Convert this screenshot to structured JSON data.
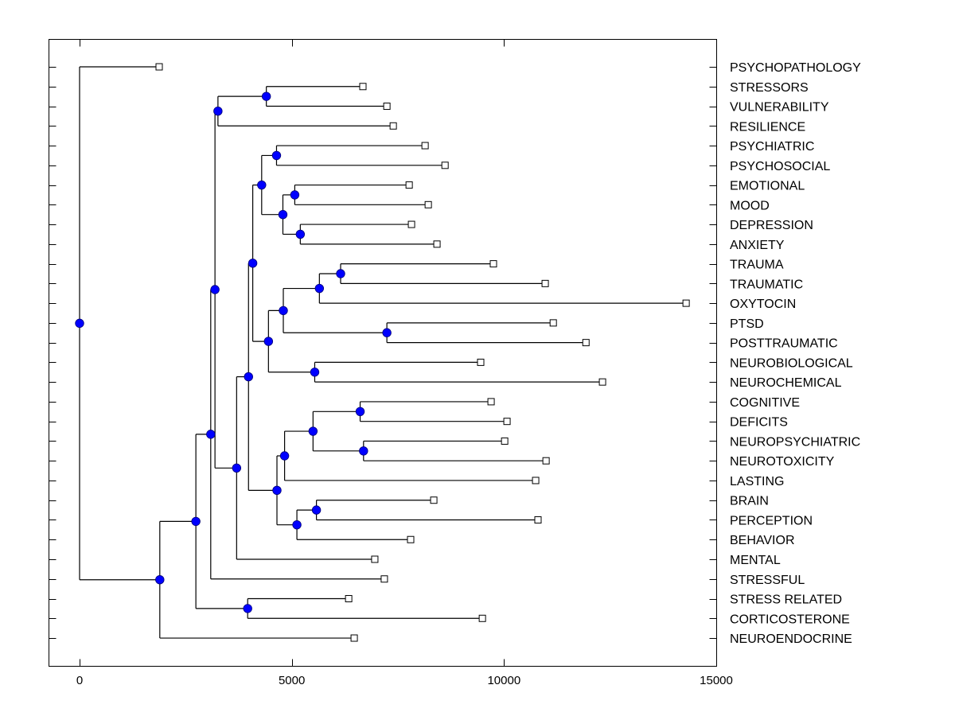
{
  "chart_data": {
    "type": "dendrogram",
    "title": "",
    "xlabel": "",
    "ylabel": "",
    "xlim": [
      -700,
      15000
    ],
    "xticks": [
      0,
      5000,
      10000,
      15000
    ],
    "xtick_labels": [
      "0",
      "5000",
      "10000",
      "15000"
    ],
    "grid": false,
    "legend": "none",
    "colors": {
      "node_fill": "#0000ff",
      "line": "#000000",
      "leaf_fill": "#ffffff"
    },
    "leaves": [
      {
        "label": "PSYCHOPATHOLOGY",
        "value": 1875
      },
      {
        "label": "STRESSORS",
        "value": 6675
      },
      {
        "label": "VULNERABILITY",
        "value": 7240
      },
      {
        "label": "RESILIENCE",
        "value": 7390
      },
      {
        "label": "PSYCHIATRIC",
        "value": 8140
      },
      {
        "label": "PSYCHOSOCIAL",
        "value": 8610
      },
      {
        "label": "EMOTIONAL",
        "value": 7765
      },
      {
        "label": "MOOD",
        "value": 8215
      },
      {
        "label": "DEPRESSION",
        "value": 7820
      },
      {
        "label": "ANXIETY",
        "value": 8420
      },
      {
        "label": "TRAUMA",
        "value": 9750
      },
      {
        "label": "TRAUMATIC",
        "value": 10970
      },
      {
        "label": "OXYTOCIN",
        "value": 14290
      },
      {
        "label": "PTSD",
        "value": 11160
      },
      {
        "label": "POSTTRAUMATIC",
        "value": 11930
      },
      {
        "label": "NEUROBIOLOGICAL",
        "value": 9450
      },
      {
        "label": "NEUROCHEMICAL",
        "value": 12320
      },
      {
        "label": "COGNITIVE",
        "value": 9695
      },
      {
        "label": "DEFICITS",
        "value": 10070
      },
      {
        "label": "NEUROPSYCHIATRIC",
        "value": 10015
      },
      {
        "label": "NEUROTOXICITY",
        "value": 10990
      },
      {
        "label": "LASTING",
        "value": 10745
      },
      {
        "label": "BRAIN",
        "value": 8345
      },
      {
        "label": "PERCEPTION",
        "value": 10800
      },
      {
        "label": "BEHAVIOR",
        "value": 7800
      },
      {
        "label": "MENTAL",
        "value": 6955
      },
      {
        "label": "STRESSFUL",
        "value": 7180
      },
      {
        "label": "STRESS RELATED",
        "value": 6340
      },
      {
        "label": "CORTICOSTERONE",
        "value": 9490
      },
      {
        "label": "NEUROENDOCRINE",
        "value": 6470
      }
    ],
    "nodes": [
      {
        "id": "n_stressors_vuln",
        "value": 4400,
        "children": [
          "L1",
          "L2"
        ]
      },
      {
        "id": "n_svr",
        "value": 3260,
        "children": [
          "n_stressors_vuln",
          "L3"
        ]
      },
      {
        "id": "n_psych",
        "value": 4640,
        "children": [
          "L4",
          "L5"
        ]
      },
      {
        "id": "n_emo_mood",
        "value": 5070,
        "children": [
          "L6",
          "L7"
        ]
      },
      {
        "id": "n_dep_anx",
        "value": 5200,
        "children": [
          "L8",
          "L9"
        ]
      },
      {
        "id": "n_affect",
        "value": 4790,
        "children": [
          "n_emo_mood",
          "n_dep_anx"
        ]
      },
      {
        "id": "n_psych_affect",
        "value": 4290,
        "children": [
          "n_psych",
          "n_affect"
        ]
      },
      {
        "id": "n_trauma",
        "value": 6150,
        "children": [
          "L10",
          "L11"
        ]
      },
      {
        "id": "n_trauma_oxy",
        "value": 5650,
        "children": [
          "n_trauma",
          "L12"
        ]
      },
      {
        "id": "n_ptsd",
        "value": 7240,
        "children": [
          "L13",
          "L14"
        ]
      },
      {
        "id": "n_trauma_ptsd",
        "value": 4800,
        "children": [
          "n_trauma_oxy",
          "n_ptsd"
        ]
      },
      {
        "id": "n_neurobio",
        "value": 5540,
        "children": [
          "L15",
          "L16"
        ]
      },
      {
        "id": "n_trauma_neuro",
        "value": 4450,
        "children": [
          "n_trauma_ptsd",
          "n_neurobio"
        ]
      },
      {
        "id": "n_upper_mid",
        "value": 4080,
        "children": [
          "n_psych_affect",
          "n_trauma_neuro"
        ]
      },
      {
        "id": "n_cog",
        "value": 6610,
        "children": [
          "L17",
          "L18"
        ]
      },
      {
        "id": "n_neuropsy",
        "value": 6690,
        "children": [
          "L19",
          "L20"
        ]
      },
      {
        "id": "n_cog_neuro",
        "value": 5500,
        "children": [
          "n_cog",
          "n_neuropsy"
        ]
      },
      {
        "id": "n_cog_lasting",
        "value": 4830,
        "children": [
          "n_cog_neuro",
          "L21"
        ]
      },
      {
        "id": "n_brain_perc",
        "value": 5580,
        "children": [
          "L22",
          "L23"
        ]
      },
      {
        "id": "n_brain_beh",
        "value": 5120,
        "children": [
          "n_brain_perc",
          "L24"
        ]
      },
      {
        "id": "n_lower_mid",
        "value": 4650,
        "children": [
          "n_cog_lasting",
          "n_brain_beh"
        ]
      },
      {
        "id": "n_mid",
        "value": 3980,
        "children": [
          "n_upper_mid",
          "n_lower_mid"
        ]
      },
      {
        "id": "n_mid_mental",
        "value": 3700,
        "children": [
          "n_mid",
          "L25"
        ]
      },
      {
        "id": "n_top_block",
        "value": 3190,
        "children": [
          "n_svr",
          "n_mid_mental"
        ]
      },
      {
        "id": "n_with_stressful",
        "value": 3090,
        "children": [
          "n_top_block",
          "L26"
        ]
      },
      {
        "id": "n_stressrel_cort",
        "value": 3960,
        "children": [
          "L27",
          "L28"
        ]
      },
      {
        "id": "n_big",
        "value": 2740,
        "children": [
          "n_with_stressful",
          "n_stressrel_cort"
        ]
      },
      {
        "id": "n_with_neuroendo",
        "value": 1890,
        "children": [
          "n_big",
          "L29"
        ]
      },
      {
        "id": "n_root",
        "value": 0,
        "children": [
          "L0",
          "n_with_neuroendo"
        ]
      }
    ]
  }
}
